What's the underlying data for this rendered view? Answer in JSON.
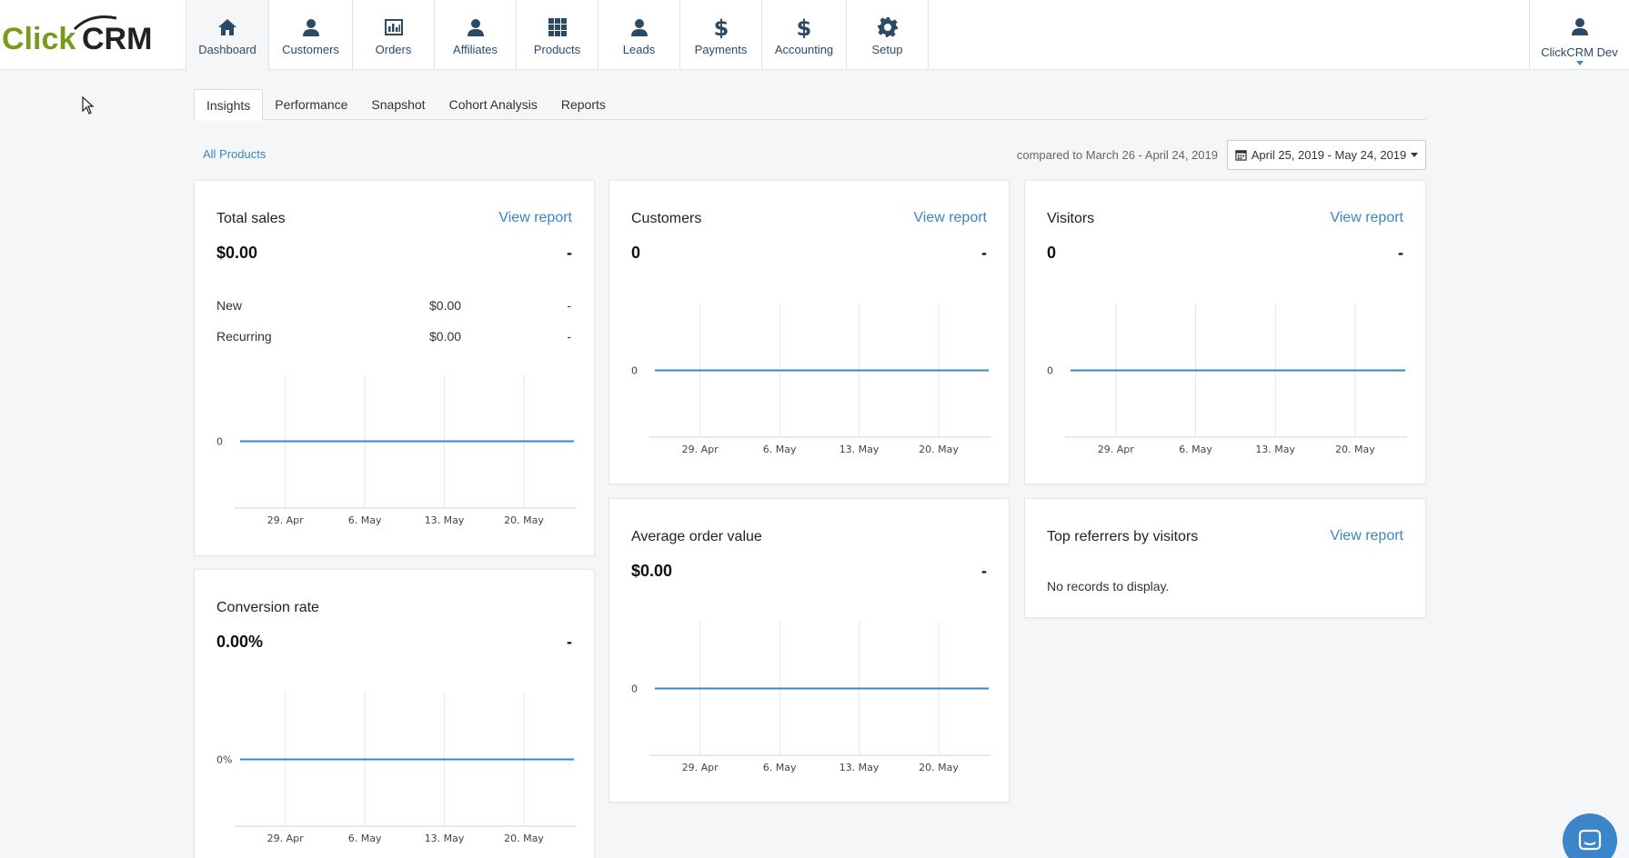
{
  "brand": {
    "logo_text_click": "Click",
    "logo_text_crm": "CRM"
  },
  "nav": {
    "items": [
      {
        "id": "dashboard",
        "label": "Dashboard",
        "icon": "home-icon"
      },
      {
        "id": "customers",
        "label": "Customers",
        "icon": "user-icon"
      },
      {
        "id": "orders",
        "label": "Orders",
        "icon": "bar-chart-icon"
      },
      {
        "id": "affiliates",
        "label": "Affiliates",
        "icon": "user-icon"
      },
      {
        "id": "products",
        "label": "Products",
        "icon": "grid-icon"
      },
      {
        "id": "leads",
        "label": "Leads",
        "icon": "user-icon"
      },
      {
        "id": "payments",
        "label": "Payments",
        "icon": "dollar-icon"
      },
      {
        "id": "accounting",
        "label": "Accounting",
        "icon": "dollar-icon"
      },
      {
        "id": "setup",
        "label": "Setup",
        "icon": "gear-icon"
      }
    ],
    "user_label": "ClickCRM Dev"
  },
  "tabs": [
    "Insights",
    "Performance",
    "Snapshot",
    "Cohort Analysis",
    "Reports"
  ],
  "filter": {
    "all_products": "All Products",
    "compared": "compared to March 26 - April 24, 2019",
    "date_range": "April 25, 2019 - May 24, 2019"
  },
  "view_report": "View report",
  "cards": {
    "total_sales": {
      "title": "Total sales",
      "value": "$0.00",
      "change": "-",
      "rows": [
        {
          "label": "New",
          "amount": "$0.00",
          "change": "-"
        },
        {
          "label": "Recurring",
          "amount": "$0.00",
          "change": "-"
        }
      ]
    },
    "customers": {
      "title": "Customers",
      "value": "0",
      "change": "-"
    },
    "visitors": {
      "title": "Visitors",
      "value": "0",
      "change": "-"
    },
    "avg_order": {
      "title": "Average order value",
      "value": "$0.00",
      "change": "-"
    },
    "referrers": {
      "title": "Top referrers by visitors",
      "empty": "No records to display."
    },
    "conversion": {
      "title": "Conversion rate",
      "value": "0.00%",
      "change": "-"
    }
  },
  "chart_data": [
    {
      "type": "line",
      "card": "total_sales",
      "x": [
        "29. Apr",
        "6. May",
        "13. May",
        "20. May"
      ],
      "series": [
        {
          "values": [
            0,
            0,
            0,
            0
          ]
        }
      ],
      "ytick": "0"
    },
    {
      "type": "line",
      "card": "customers",
      "x": [
        "29. Apr",
        "6. May",
        "13. May",
        "20. May"
      ],
      "series": [
        {
          "values": [
            0,
            0,
            0,
            0
          ]
        }
      ],
      "ytick": "0"
    },
    {
      "type": "line",
      "card": "visitors",
      "x": [
        "29. Apr",
        "6. May",
        "13. May",
        "20. May"
      ],
      "series": [
        {
          "values": [
            0,
            0,
            0,
            0
          ]
        }
      ],
      "ytick": "0"
    },
    {
      "type": "line",
      "card": "avg_order",
      "x": [
        "29. Apr",
        "6. May",
        "13. May",
        "20. May"
      ],
      "series": [
        {
          "values": [
            0,
            0,
            0,
            0
          ]
        }
      ],
      "ytick": "0"
    },
    {
      "type": "line",
      "card": "conversion",
      "x": [
        "29. Apr",
        "6. May",
        "13. May",
        "20. May"
      ],
      "series": [
        {
          "values": [
            0,
            0,
            0,
            0
          ]
        }
      ],
      "ytick": "0%"
    }
  ],
  "colors": {
    "accent": "#3a86c8",
    "nav_text": "#2c4a66",
    "logo_green": "#7a9a1c"
  }
}
